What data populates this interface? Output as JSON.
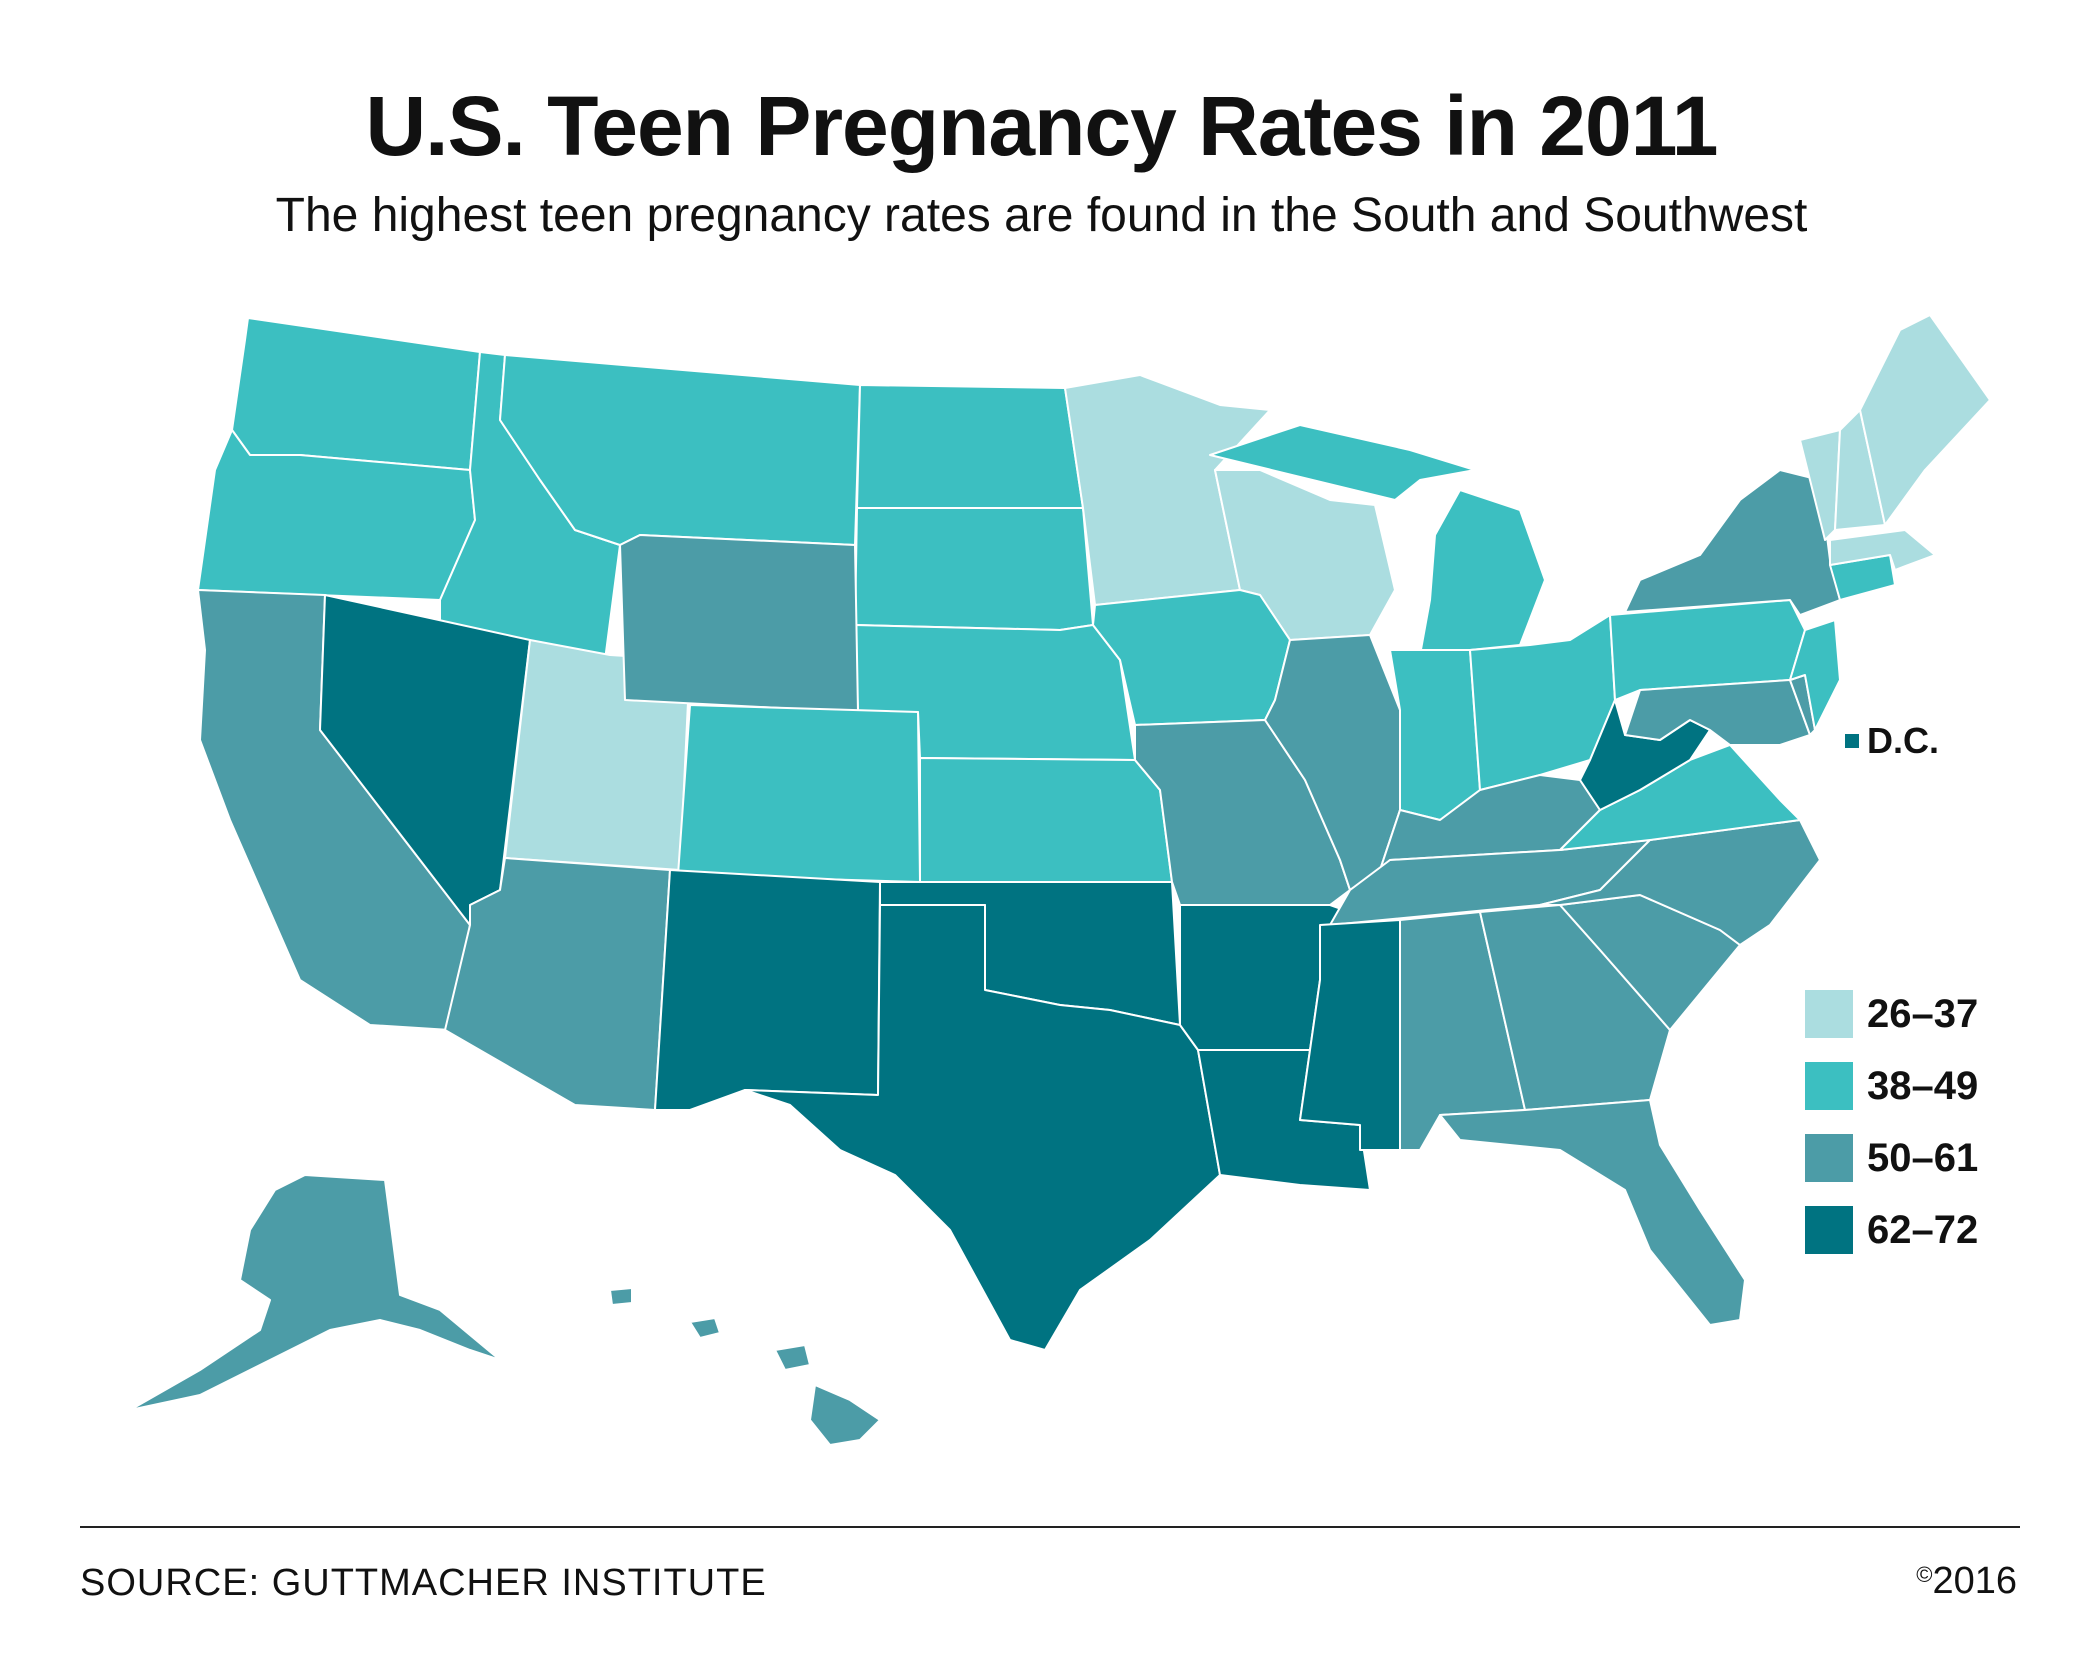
{
  "title": "U.S. Teen Pregnancy Rates in 2011",
  "subtitle": "The highest teen pregnancy rates are found in the South and Southwest",
  "dc_label": "D.C.",
  "source": "SOURCE: GUTTMACHER INSTITUTE",
  "copyright_symbol": "©",
  "copyright_year": "2016",
  "legend": [
    {
      "label": "26–37",
      "color": "#abdde0"
    },
    {
      "label": "38–49",
      "color": "#3cbfc1"
    },
    {
      "label": "50–61",
      "color": "#4c9ca7"
    },
    {
      "label": "62–72",
      "color": "#007381"
    }
  ],
  "colors": {
    "bin1": "#abdde0",
    "bin2": "#3cbfc1",
    "bin3": "#4c9ca7",
    "bin4": "#007381",
    "border": "#ffffff"
  },
  "state_bins": {
    "WA": "38–49",
    "OR": "38–49",
    "ID": "38–49",
    "MT": "38–49",
    "ND": "38–49",
    "SD": "38–49",
    "NE": "38–49",
    "CO": "38–49",
    "KS": "38–49",
    "IA": "38–49",
    "MI": "38–49",
    "IN": "38–49",
    "OH": "38–49",
    "PA": "38–49",
    "VA": "38–49",
    "NJ": "38–49",
    "CT": "38–49",
    "MN": "26–37",
    "WI": "26–37",
    "UT": "26–37",
    "ME": "26–37",
    "VT": "26–37",
    "NH": "26–37",
    "MA": "26–37",
    "CA": "50–61",
    "AZ": "50–61",
    "WY": "50–61",
    "MO": "50–61",
    "IL": "50–61",
    "KY": "50–61",
    "TN": "50–61",
    "NC": "50–61",
    "SC": "50–61",
    "GA": "50–61",
    "AL": "50–61",
    "FL": "50–61",
    "NY": "50–61",
    "MD": "50–61",
    "DE": "50–61",
    "AK": "50–61",
    "HI": "50–61",
    "NV": "62–72",
    "NM": "62–72",
    "TX": "62–72",
    "OK": "62–72",
    "AR": "62–72",
    "LA": "62–72",
    "MS": "62–72",
    "WV": "62–72",
    "DC": "62–72"
  }
}
